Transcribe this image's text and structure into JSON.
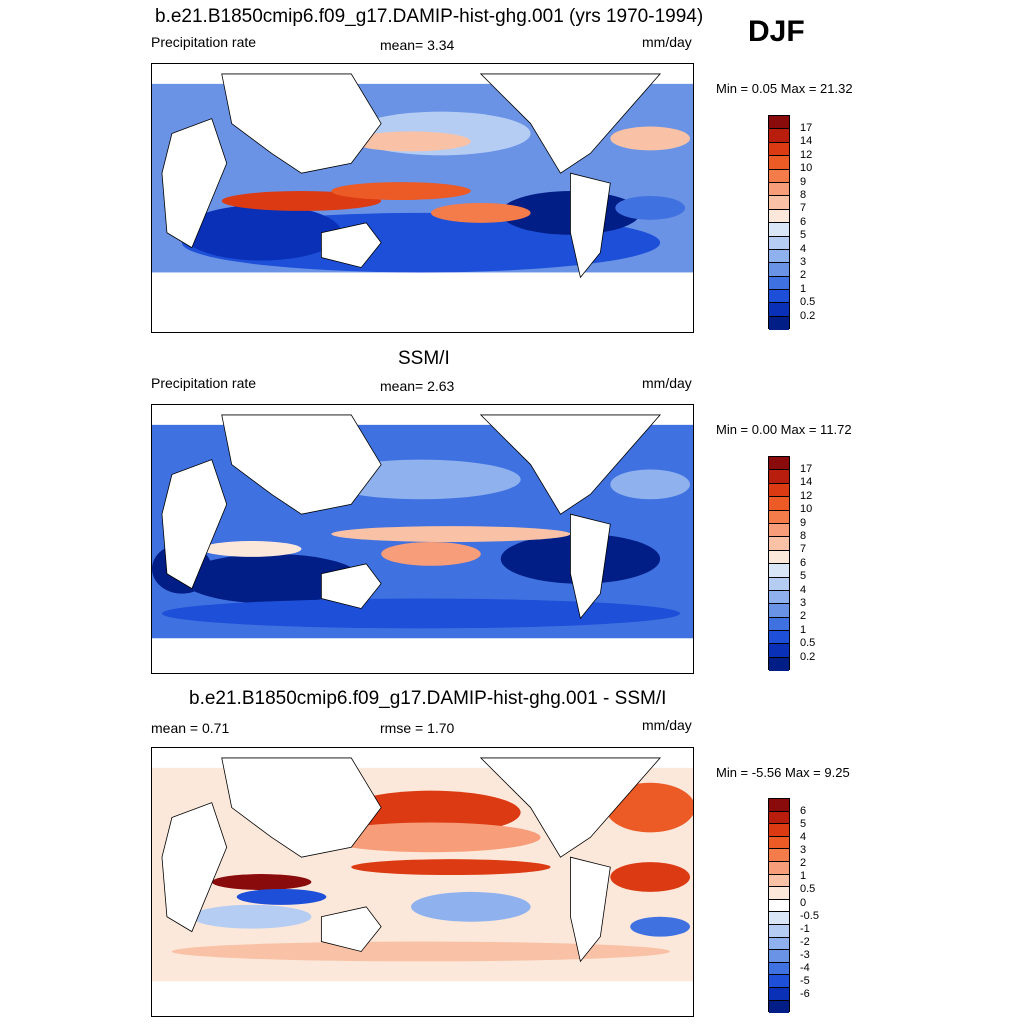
{
  "season": "DJF",
  "panels": [
    {
      "title": "b.e21.B1850cmip6.f09_g17.DAMIP-hist-ghg.001 (yrs 1970-1994)",
      "left_label": "Precipitation rate",
      "mid_label": "mean=   3.34",
      "right_label": "mm/day",
      "minmax": "Min =   0.05 Max =  21.32",
      "palette": "precip",
      "levels": [
        "17",
        "14",
        "12",
        "10",
        "9",
        "8",
        "7",
        "6",
        "5",
        "4",
        "3",
        "2",
        "1",
        "0.5",
        "0.2"
      ]
    },
    {
      "title": "SSM/I",
      "left_label": "Precipitation rate",
      "mid_label": "mean=   2.63",
      "right_label": "mm/day",
      "minmax": "Min =   0.00 Max =  11.72",
      "palette": "precip",
      "levels": [
        "17",
        "14",
        "12",
        "10",
        "9",
        "8",
        "7",
        "6",
        "5",
        "4",
        "3",
        "2",
        "1",
        "0.5",
        "0.2"
      ]
    },
    {
      "title": "b.e21.B1850cmip6.f09_g17.DAMIP-hist-ghg.001 - SSM/I",
      "left_label": "mean =   0.71",
      "mid_label": "rmse =   1.70",
      "right_label": "mm/day",
      "minmax": "Min =  -5.56 Max =   9.25",
      "palette": "diff",
      "levels": [
        "6",
        "5",
        "4",
        "3",
        "2",
        "1",
        "0.5",
        "0",
        "-0.5",
        "-1",
        "-2",
        "-3",
        "-4",
        "-5",
        "-6"
      ]
    }
  ],
  "colors": {
    "precip": [
      "#8a0b0b",
      "#b81d0d",
      "#dc3a12",
      "#ec5a26",
      "#f47b4a",
      "#f79d79",
      "#f9c2a6",
      "#fce8da",
      "#d8e6f8",
      "#b6cdf3",
      "#8fb2ee",
      "#6a93e6",
      "#4071e0",
      "#1d4fd8",
      "#0b30b8",
      "#001e86"
    ],
    "diff": [
      "#8a0b0b",
      "#b81d0d",
      "#dc3a12",
      "#ec5a26",
      "#f47b4a",
      "#f79d79",
      "#f9c2a6",
      "#fce8da",
      "#ffffff",
      "#d8e6f8",
      "#b6cdf3",
      "#8fb2ee",
      "#6a93e6",
      "#4071e0",
      "#1d4fd8",
      "#0b30b8",
      "#001e86"
    ]
  }
}
